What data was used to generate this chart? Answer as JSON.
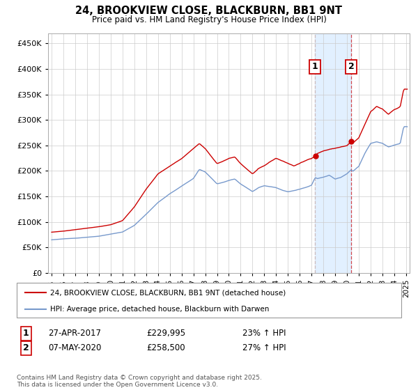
{
  "title": "24, BROOKVIEW CLOSE, BLACKBURN, BB1 9NT",
  "subtitle": "Price paid vs. HM Land Registry's House Price Index (HPI)",
  "legend_line1": "24, BROOKVIEW CLOSE, BLACKBURN, BB1 9NT (detached house)",
  "legend_line2": "HPI: Average price, detached house, Blackburn with Darwen",
  "footnote": "Contains HM Land Registry data © Crown copyright and database right 2025.\nThis data is licensed under the Open Government Licence v3.0.",
  "transaction1_date": "27-APR-2017",
  "transaction1_price": "£229,995",
  "transaction1_hpi": "23% ↑ HPI",
  "transaction2_date": "07-MAY-2020",
  "transaction2_price": "£258,500",
  "transaction2_hpi": "27% ↑ HPI",
  "red_color": "#cc0000",
  "blue_color": "#7799cc",
  "shade_color": "#ddeeff",
  "ylim": [
    0,
    470000
  ],
  "yticks": [
    0,
    50000,
    100000,
    150000,
    200000,
    250000,
    300000,
    350000,
    400000,
    450000
  ],
  "transaction1_year": 2017.3,
  "transaction2_year": 2020.35,
  "red_keypoints": [
    [
      1995.0,
      80000
    ],
    [
      1996.0,
      82000
    ],
    [
      1997.0,
      85000
    ],
    [
      1998.0,
      88000
    ],
    [
      1999.0,
      91000
    ],
    [
      2000.0,
      95000
    ],
    [
      2001.0,
      103000
    ],
    [
      2002.0,
      130000
    ],
    [
      2003.0,
      165000
    ],
    [
      2004.0,
      195000
    ],
    [
      2005.0,
      210000
    ],
    [
      2006.0,
      225000
    ],
    [
      2007.0,
      245000
    ],
    [
      2007.5,
      255000
    ],
    [
      2008.0,
      245000
    ],
    [
      2009.0,
      215000
    ],
    [
      2009.5,
      220000
    ],
    [
      2010.0,
      225000
    ],
    [
      2010.5,
      228000
    ],
    [
      2011.0,
      215000
    ],
    [
      2011.5,
      205000
    ],
    [
      2012.0,
      195000
    ],
    [
      2012.5,
      205000
    ],
    [
      2013.0,
      210000
    ],
    [
      2013.5,
      218000
    ],
    [
      2014.0,
      225000
    ],
    [
      2014.5,
      220000
    ],
    [
      2015.0,
      215000
    ],
    [
      2015.5,
      210000
    ],
    [
      2016.0,
      215000
    ],
    [
      2016.5,
      220000
    ],
    [
      2017.0,
      225000
    ],
    [
      2017.3,
      229995
    ],
    [
      2017.5,
      235000
    ],
    [
      2018.0,
      240000
    ],
    [
      2018.5,
      243000
    ],
    [
      2019.0,
      245000
    ],
    [
      2019.5,
      248000
    ],
    [
      2020.0,
      250000
    ],
    [
      2020.35,
      258500
    ],
    [
      2020.5,
      255000
    ],
    [
      2021.0,
      265000
    ],
    [
      2021.5,
      290000
    ],
    [
      2022.0,
      315000
    ],
    [
      2022.5,
      325000
    ],
    [
      2023.0,
      320000
    ],
    [
      2023.5,
      310000
    ],
    [
      2024.0,
      320000
    ],
    [
      2024.5,
      325000
    ],
    [
      2024.8,
      360000
    ]
  ],
  "blue_keypoints": [
    [
      1995.0,
      65000
    ],
    [
      1996.0,
      67000
    ],
    [
      1997.0,
      68000
    ],
    [
      1998.0,
      70000
    ],
    [
      1999.0,
      72000
    ],
    [
      2000.0,
      76000
    ],
    [
      2001.0,
      80000
    ],
    [
      2002.0,
      93000
    ],
    [
      2003.0,
      115000
    ],
    [
      2004.0,
      138000
    ],
    [
      2005.0,
      155000
    ],
    [
      2006.0,
      170000
    ],
    [
      2007.0,
      185000
    ],
    [
      2007.5,
      203000
    ],
    [
      2008.0,
      198000
    ],
    [
      2009.0,
      175000
    ],
    [
      2009.5,
      178000
    ],
    [
      2010.0,
      182000
    ],
    [
      2010.5,
      185000
    ],
    [
      2011.0,
      175000
    ],
    [
      2011.5,
      168000
    ],
    [
      2012.0,
      160000
    ],
    [
      2012.5,
      168000
    ],
    [
      2013.0,
      172000
    ],
    [
      2013.5,
      170000
    ],
    [
      2014.0,
      168000
    ],
    [
      2014.5,
      163000
    ],
    [
      2015.0,
      160000
    ],
    [
      2015.5,
      162000
    ],
    [
      2016.0,
      165000
    ],
    [
      2016.5,
      168000
    ],
    [
      2017.0,
      172000
    ],
    [
      2017.3,
      187000
    ],
    [
      2017.5,
      185000
    ],
    [
      2018.0,
      188000
    ],
    [
      2018.5,
      192000
    ],
    [
      2019.0,
      185000
    ],
    [
      2019.5,
      188000
    ],
    [
      2020.0,
      195000
    ],
    [
      2020.35,
      203000
    ],
    [
      2020.5,
      200000
    ],
    [
      2021.0,
      210000
    ],
    [
      2021.5,
      235000
    ],
    [
      2022.0,
      255000
    ],
    [
      2022.5,
      258000
    ],
    [
      2023.0,
      255000
    ],
    [
      2023.5,
      248000
    ],
    [
      2024.0,
      252000
    ],
    [
      2024.5,
      255000
    ],
    [
      2024.8,
      288000
    ]
  ]
}
